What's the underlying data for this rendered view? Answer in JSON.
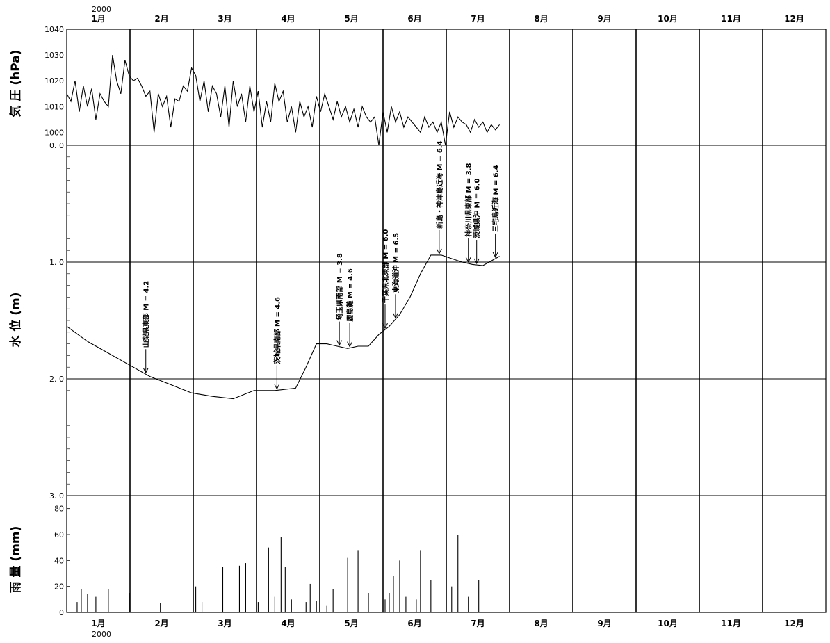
{
  "chart_data": {
    "type": "line",
    "months_top": [
      "1月",
      "2月",
      "3月",
      "4月",
      "5月",
      "6月",
      "7月",
      "8月",
      "9月",
      "10月",
      "11月",
      "12月"
    ],
    "months_bottom": [
      "1月",
      "2月",
      "3月",
      "4月",
      "5月",
      "6月",
      "7月",
      "8月",
      "9月",
      "10月",
      "11月",
      "12月"
    ],
    "year_top": "2000",
    "year_bottom": "2000",
    "pressure": {
      "ylabel": "気 圧 (hPa)",
      "ylim": [
        995,
        1040
      ],
      "ticks": [
        "1000",
        "1010",
        "1020",
        "1030",
        "1040"
      ],
      "tick_values": [
        1000,
        1010,
        1020,
        1030,
        1040
      ],
      "day": [
        0,
        2,
        4,
        6,
        8,
        10,
        12,
        14,
        16,
        18,
        20,
        22,
        24,
        26,
        28,
        30,
        32,
        34,
        36,
        38,
        40,
        42,
        44,
        46,
        48,
        50,
        52,
        54,
        56,
        58,
        60,
        62,
        64,
        66,
        68,
        70,
        72,
        74,
        76,
        78,
        80,
        82,
        84,
        86,
        88,
        90,
        92,
        94,
        96,
        98,
        100,
        102,
        104,
        106,
        108,
        110,
        112,
        114,
        116,
        118,
        120,
        122,
        124,
        126,
        128,
        130,
        132,
        134,
        136,
        138,
        140,
        142,
        144,
        146,
        148,
        150,
        152,
        154,
        156,
        158,
        160,
        162,
        164,
        166,
        168,
        170,
        172,
        174,
        176,
        178,
        180,
        182,
        184,
        186,
        188,
        190,
        192,
        194,
        196,
        198,
        200,
        202,
        204,
        206,
        208
      ],
      "values": [
        1015,
        1012,
        1020,
        1008,
        1018,
        1010,
        1017,
        1005,
        1015,
        1012,
        1010,
        1030,
        1020,
        1015,
        1028,
        1022,
        1020,
        1021,
        1018,
        1014,
        1016,
        1000,
        1015,
        1010,
        1014,
        1002,
        1013,
        1012,
        1018,
        1016,
        1025,
        1022,
        1012,
        1020,
        1008,
        1018,
        1015,
        1006,
        1018,
        1002,
        1020,
        1010,
        1015,
        1004,
        1018,
        1008,
        1016,
        1002,
        1012,
        1004,
        1019,
        1012,
        1016,
        1004,
        1010,
        1000,
        1012,
        1006,
        1010,
        1002,
        1014,
        1008,
        1015,
        1010,
        1005,
        1012,
        1006,
        1010,
        1004,
        1009,
        1002,
        1010,
        1006,
        1004,
        1006,
        995,
        1008,
        1000,
        1010,
        1004,
        1008,
        1002,
        1006,
        1004,
        1002,
        1000,
        1006,
        1002,
        1004,
        1000,
        1004,
        995,
        1008,
        1002,
        1006,
        1004,
        1003,
        1000,
        1005,
        1002,
        1004,
        1000,
        1003,
        1001,
        1003
      ]
    },
    "water_level": {
      "ylabel": "水 位 (m)",
      "ylim": [
        0.0,
        3.0
      ],
      "inverted": true,
      "ticks": [
        "0. 0",
        "1. 0",
        "2. 0",
        "3. 0"
      ],
      "tick_values": [
        0,
        1,
        2,
        3
      ],
      "day": [
        0,
        10,
        20,
        30,
        40,
        50,
        60,
        70,
        80,
        90,
        100,
        110,
        115,
        120,
        125,
        130,
        135,
        140,
        145,
        150,
        155,
        160,
        165,
        170,
        175,
        180,
        185,
        190,
        195,
        200,
        205,
        208
      ],
      "values": [
        1.55,
        1.68,
        1.78,
        1.88,
        1.98,
        2.05,
        2.12,
        2.15,
        2.17,
        2.1,
        2.1,
        2.08,
        1.9,
        1.7,
        1.7,
        1.72,
        1.74,
        1.72,
        1.72,
        1.62,
        1.55,
        1.45,
        1.3,
        1.1,
        0.94,
        0.94,
        0.97,
        1.0,
        1.02,
        1.03,
        0.98,
        0.95
      ]
    },
    "rain": {
      "ylabel": "雨 量 (mm)",
      "ylim": [
        0,
        90
      ],
      "ticks": [
        "0",
        "20",
        "40",
        "60",
        "80"
      ],
      "tick_values": [
        0,
        20,
        40,
        60,
        80
      ],
      "day": [
        5,
        7,
        10,
        14,
        20,
        30,
        45,
        62,
        65,
        75,
        83,
        86,
        92,
        97,
        100,
        103,
        105,
        108,
        115,
        117,
        120,
        125,
        128,
        135,
        140,
        145,
        153,
        155,
        157,
        160,
        163,
        168,
        170,
        175,
        185,
        188,
        193,
        198
      ],
      "values": [
        8,
        18,
        14,
        12,
        18,
        15,
        7,
        20,
        8,
        35,
        36,
        38,
        8,
        50,
        12,
        58,
        35,
        10,
        8,
        22,
        9,
        5,
        18,
        42,
        48,
        15,
        10,
        15,
        28,
        40,
        12,
        10,
        48,
        25,
        20,
        60,
        12,
        25
      ]
    },
    "earthquakes": [
      {
        "label": "山梨県東部 M = 4.2",
        "day": 38
      },
      {
        "label": "茨城県南部 M = 4.6",
        "day": 101
      },
      {
        "label": "埼玉県南部 M = 3.8",
        "day": 131
      },
      {
        "label": "鹿島灘 M = 4.6",
        "day": 136
      },
      {
        "label": "千葉県北東部 M = 6.0",
        "day": 153
      },
      {
        "label": "東海道沖 M = 6.5",
        "day": 158
      },
      {
        "label": "新島・神津島近海 M = 6.4",
        "day": 179
      },
      {
        "label": "神奈川県東部 M = 3.8",
        "day": 193
      },
      {
        "label": "茨城県沖 M = 6.0",
        "day": 197
      },
      {
        "label": "三宅島近海 M = 6.4",
        "day": 206
      }
    ]
  }
}
